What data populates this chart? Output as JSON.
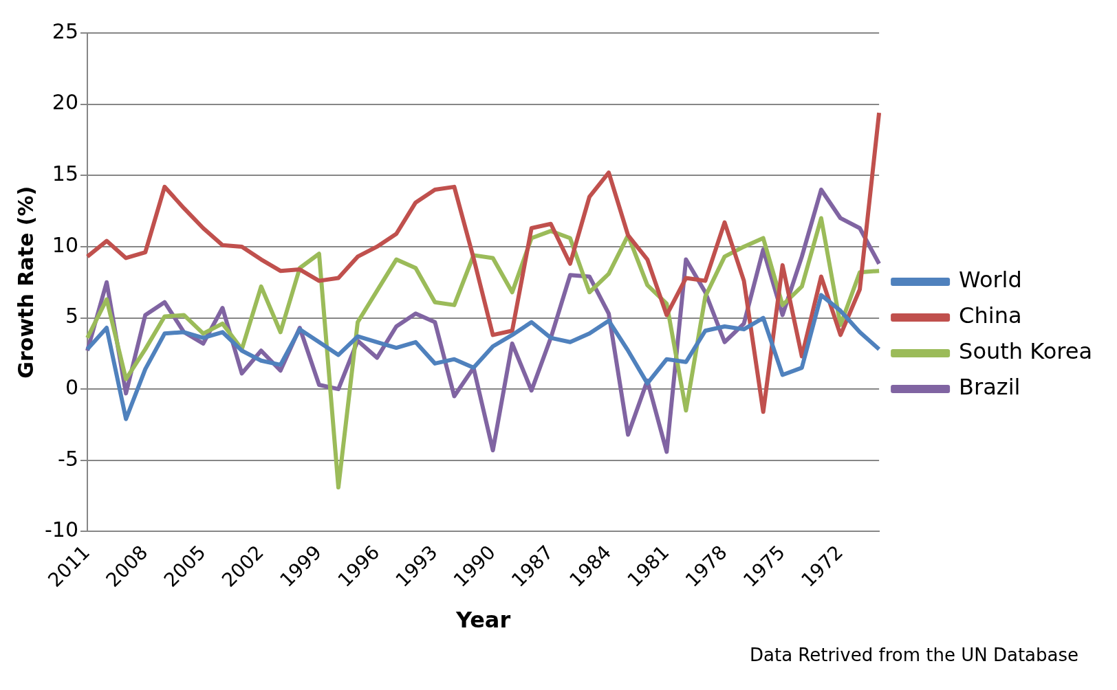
{
  "chart_data": {
    "type": "line",
    "xlabel": "Year",
    "ylabel": "Growth Rate (%)",
    "categories": [
      "2011",
      null,
      null,
      "2008",
      null,
      null,
      "2005",
      null,
      null,
      "2002",
      null,
      null,
      "1999",
      null,
      null,
      "1996",
      null,
      null,
      "1993",
      null,
      null,
      "1990",
      null,
      null,
      "1987",
      null,
      null,
      "1984",
      null,
      null,
      "1981",
      null,
      null,
      "1978",
      null,
      null,
      "1975",
      null,
      null,
      "1972",
      null,
      null
    ],
    "ylim": [
      -10,
      25
    ],
    "yticks": [
      -10,
      -5,
      0,
      5,
      10,
      15,
      20,
      25
    ],
    "grid": "y",
    "legend": "right",
    "marker": "none",
    "line_style": "solid",
    "series": [
      {
        "name": "World",
        "color": "#4f81bd",
        "values": [
          2.8,
          4.3,
          -2.1,
          1.4,
          3.9,
          4.0,
          3.6,
          4.0,
          2.7,
          2.0,
          1.7,
          4.2,
          3.3,
          2.4,
          3.7,
          3.3,
          2.9,
          3.3,
          1.8,
          2.1,
          1.5,
          3.0,
          3.8,
          4.7,
          3.6,
          3.3,
          3.9,
          4.8,
          2.7,
          0.4,
          2.1,
          1.9,
          4.1,
          4.4,
          4.2,
          5.0,
          1.0,
          1.5,
          6.6,
          5.5,
          4.0,
          2.8
        ]
      },
      {
        "name": "China",
        "color": "#c0504d",
        "values": [
          9.3,
          10.4,
          9.2,
          9.6,
          14.2,
          12.7,
          11.3,
          10.1,
          10.0,
          9.1,
          8.3,
          8.4,
          7.6,
          7.8,
          9.3,
          10.0,
          10.9,
          13.1,
          14.0,
          14.2,
          9.2,
          3.8,
          4.1,
          11.3,
          11.6,
          8.8,
          13.5,
          15.2,
          10.8,
          9.1,
          5.2,
          7.8,
          7.6,
          11.7,
          7.6,
          -1.6,
          8.7,
          2.3,
          7.9,
          3.8,
          7.0,
          19.4
        ]
      },
      {
        "name": "South Korea",
        "color": "#9bbb59",
        "values": [
          3.6,
          6.3,
          0.7,
          2.8,
          5.1,
          5.2,
          3.9,
          4.6,
          2.8,
          7.2,
          4.0,
          8.5,
          9.5,
          -6.9,
          4.7,
          6.9,
          9.1,
          8.5,
          6.1,
          5.9,
          9.4,
          9.2,
          6.8,
          10.6,
          11.1,
          10.6,
          6.8,
          8.1,
          10.8,
          7.3,
          6.0,
          -1.5,
          6.5,
          9.3,
          10.0,
          10.6,
          5.9,
          7.2,
          12.0,
          4.5,
          8.2,
          8.3
        ]
      },
      {
        "name": "Brazil",
        "color": "#8064a2",
        "values": [
          2.7,
          7.5,
          -0.3,
          5.2,
          6.1,
          4.0,
          3.2,
          5.7,
          1.1,
          2.7,
          1.3,
          4.3,
          0.3,
          0.0,
          3.4,
          2.2,
          4.4,
          5.3,
          4.7,
          -0.5,
          1.5,
          -4.3,
          3.2,
          -0.1,
          3.6,
          8.0,
          7.9,
          5.3,
          -3.2,
          0.6,
          -4.4,
          9.1,
          6.8,
          3.3,
          4.6,
          9.8,
          5.2,
          9.3,
          14.0,
          12.0,
          11.3,
          8.8
        ]
      }
    ],
    "annotations": [
      "Data Retrived from the UN Database"
    ]
  }
}
